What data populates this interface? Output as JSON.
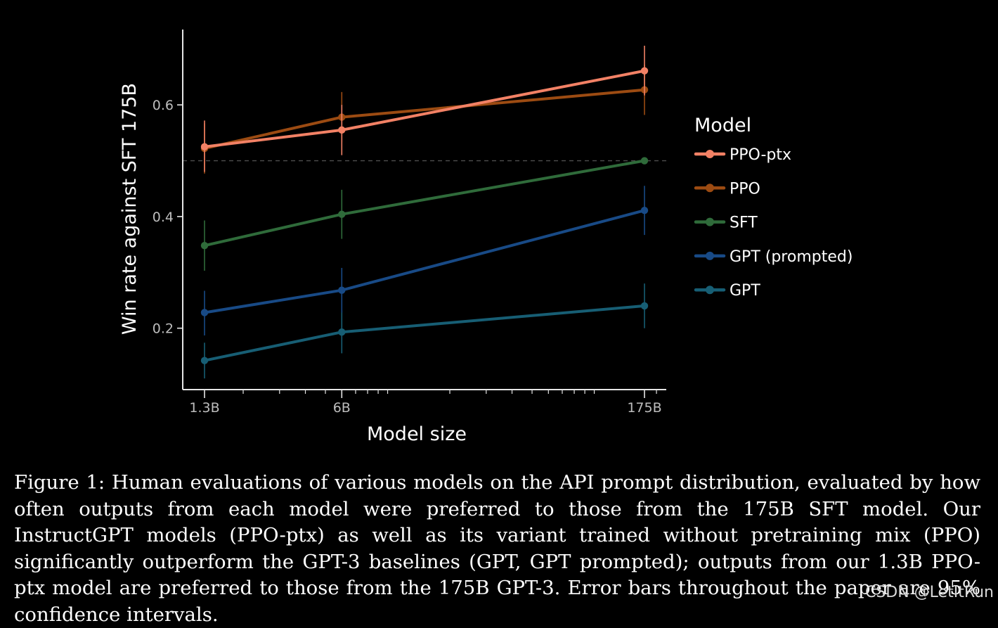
{
  "chart_data": {
    "type": "line",
    "xscale": "log",
    "categories": [
      "1.3B",
      "6B",
      "175B"
    ],
    "x": [
      1.3,
      6,
      175
    ],
    "xlabel": "Model size",
    "ylabel": "Win rate against SFT 175B",
    "ylim": [
      0.09,
      0.735
    ],
    "yticks": [
      0.2,
      0.4,
      0.6
    ],
    "ytick_labels": [
      "0.2",
      "0.4",
      "0.6"
    ],
    "reference_line": 0.5,
    "legend_title": "Model",
    "legend_position": "right",
    "series": [
      {
        "name": "PPO-ptx",
        "color": "#f28165",
        "values": [
          0.525,
          0.555,
          0.661
        ],
        "err_low": [
          0.48,
          0.51,
          0.617
        ],
        "err_high": [
          0.572,
          0.6,
          0.706
        ]
      },
      {
        "name": "PPO",
        "color": "#9c4b12",
        "values": [
          0.522,
          0.578,
          0.627
        ],
        "err_low": [
          0.477,
          0.533,
          0.582
        ],
        "err_high": [
          0.567,
          0.623,
          0.672
        ]
      },
      {
        "name": "SFT",
        "color": "#2f6b3a",
        "values": [
          0.348,
          0.404,
          0.5
        ],
        "err_low": [
          0.303,
          0.36,
          0.5
        ],
        "err_high": [
          0.393,
          0.448,
          0.5
        ]
      },
      {
        "name": "GPT (prompted)",
        "color": "#184a86",
        "values": [
          0.228,
          0.268,
          0.411
        ],
        "err_low": [
          0.187,
          0.228,
          0.367
        ],
        "err_high": [
          0.267,
          0.308,
          0.455
        ]
      },
      {
        "name": "GPT",
        "color": "#175e74",
        "values": [
          0.142,
          0.193,
          0.24
        ],
        "err_low": [
          0.11,
          0.155,
          0.2
        ],
        "err_high": [
          0.174,
          0.232,
          0.28
        ]
      }
    ]
  },
  "caption": "Figure 1: Human evaluations of various models on the API prompt distribution, evaluated by how often outputs from each model were preferred to those from the 175B SFT model. Our InstructGPT models (PPO-ptx) as well as its variant trained without pretraining mix (PPO) significantly outperform the GPT-3 baselines (GPT, GPT prompted); outputs from our 1.3B PPO-ptx model are preferred to those from the 175B GPT-3. Error bars throughout the paper are 95% confidence intervals.",
  "watermark": "CSDN @LetItRun"
}
